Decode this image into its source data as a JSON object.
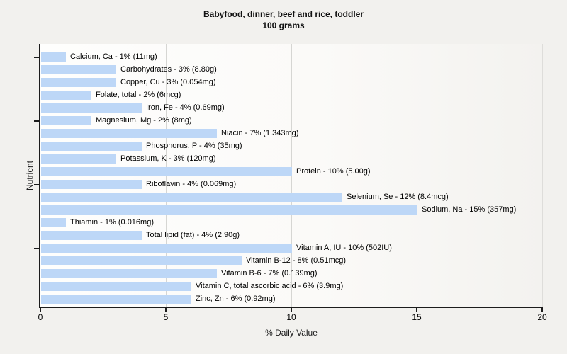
{
  "chart_data": {
    "type": "bar",
    "orientation": "horizontal",
    "title": "Babyfood, dinner, beef and rice, toddler",
    "subtitle": "100 grams",
    "xlabel": "% Daily Value",
    "ylabel": "Nutrient",
    "xlim": [
      0,
      20
    ],
    "xticks": [
      "0",
      "5",
      "10",
      "15",
      "20"
    ],
    "gridlines_at": [
      5,
      10,
      15
    ],
    "legend": "none",
    "bar_color": "#bdd7f7",
    "bars": [
      {
        "nutrient": "Calcium, Ca",
        "percent": 1,
        "amount": "11mg",
        "label": "Calcium, Ca - 1% (11mg)"
      },
      {
        "nutrient": "Carbohydrates",
        "percent": 3,
        "amount": "8.80g",
        "label": "Carbohydrates - 3% (8.80g)"
      },
      {
        "nutrient": "Copper, Cu",
        "percent": 3,
        "amount": "0.054mg",
        "label": "Copper, Cu - 3% (0.054mg)"
      },
      {
        "nutrient": "Folate, total",
        "percent": 2,
        "amount": "6mcg",
        "label": "Folate, total - 2% (6mcg)"
      },
      {
        "nutrient": "Iron, Fe",
        "percent": 4,
        "amount": "0.69mg",
        "label": "Iron, Fe - 4% (0.69mg)"
      },
      {
        "nutrient": "Magnesium, Mg",
        "percent": 2,
        "amount": "8mg",
        "label": "Magnesium, Mg - 2% (8mg)"
      },
      {
        "nutrient": "Niacin",
        "percent": 7,
        "amount": "1.343mg",
        "label": "Niacin - 7% (1.343mg)"
      },
      {
        "nutrient": "Phosphorus, P",
        "percent": 4,
        "amount": "35mg",
        "label": "Phosphorus, P - 4% (35mg)"
      },
      {
        "nutrient": "Potassium, K",
        "percent": 3,
        "amount": "120mg",
        "label": "Potassium, K - 3% (120mg)"
      },
      {
        "nutrient": "Protein",
        "percent": 10,
        "amount": "5.00g",
        "label": "Protein - 10% (5.00g)"
      },
      {
        "nutrient": "Riboflavin",
        "percent": 4,
        "amount": "0.069mg",
        "label": "Riboflavin - 4% (0.069mg)"
      },
      {
        "nutrient": "Selenium, Se",
        "percent": 12,
        "amount": "8.4mcg",
        "label": "Selenium, Se - 12% (8.4mcg)"
      },
      {
        "nutrient": "Sodium, Na",
        "percent": 15,
        "amount": "357mg",
        "label": "Sodium, Na - 15% (357mg)"
      },
      {
        "nutrient": "Thiamin",
        "percent": 1,
        "amount": "0.016mg",
        "label": "Thiamin - 1% (0.016mg)"
      },
      {
        "nutrient": "Total lipid (fat)",
        "percent": 4,
        "amount": "2.90g",
        "label": "Total lipid (fat) - 4% (2.90g)"
      },
      {
        "nutrient": "Vitamin A, IU",
        "percent": 10,
        "amount": "502IU",
        "label": "Vitamin A, IU - 10% (502IU)"
      },
      {
        "nutrient": "Vitamin B-12",
        "percent": 8,
        "amount": "0.51mcg",
        "label": "Vitamin B-12 - 8% (0.51mcg)"
      },
      {
        "nutrient": "Vitamin B-6",
        "percent": 7,
        "amount": "0.139mg",
        "label": "Vitamin B-6 - 7% (0.139mg)"
      },
      {
        "nutrient": "Vitamin C, total ascorbic acid",
        "percent": 6,
        "amount": "3.9mg",
        "label": "Vitamin C, total ascorbic acid - 6% (3.9mg)"
      },
      {
        "nutrient": "Zinc, Zn",
        "percent": 6,
        "amount": "0.92mg",
        "label": "Zinc, Zn - 6% (0.92mg)"
      }
    ]
  }
}
